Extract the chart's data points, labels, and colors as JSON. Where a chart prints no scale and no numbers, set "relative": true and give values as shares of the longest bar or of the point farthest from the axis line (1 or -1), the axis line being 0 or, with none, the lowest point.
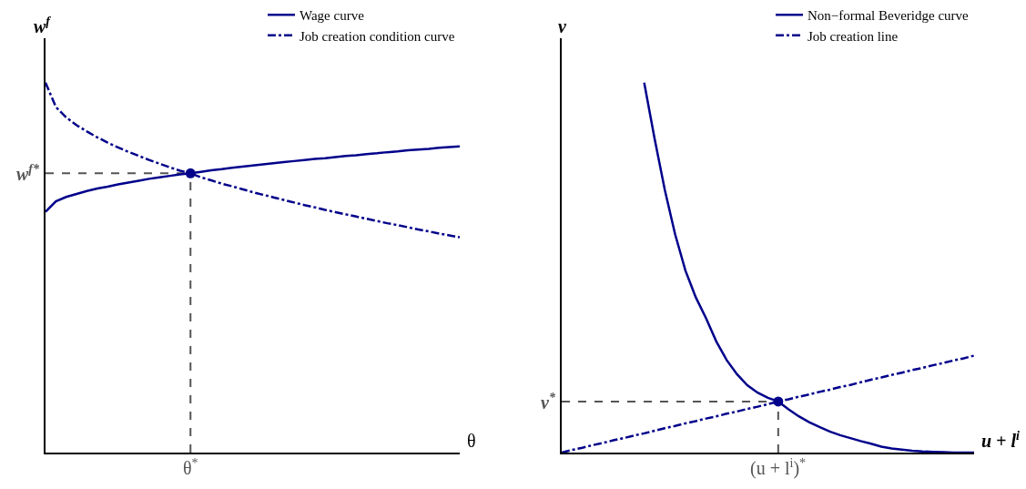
{
  "chart_data": [
    {
      "type": "line",
      "relative": true,
      "xlabel": "θ",
      "ylabel": "w$^{f}$",
      "legend": "top right",
      "annotations": [
        "θ$^{*}$",
        "w$^{f*}$"
      ],
      "categories": [
        null,
        null,
        null,
        null,
        null,
        null,
        null,
        null,
        null,
        null,
        null,
        null,
        null,
        null,
        null,
        null,
        null,
        null,
        null,
        null,
        null,
        null,
        null,
        null,
        null,
        null,
        null,
        null,
        null,
        null,
        null,
        null,
        null,
        null,
        null,
        null,
        null,
        null,
        null,
        null,
        null
      ],
      "series": [
        {
          "name": "Wage curve",
          "color": "#00008b",
          "line_style": "solid",
          "values": [
            0.651,
            0.679,
            0.691,
            0.699,
            0.707,
            0.714,
            0.719,
            0.725,
            0.73,
            0.735,
            0.74,
            0.744,
            0.748,
            0.752,
            0.755,
            0.759,
            0.763,
            0.766,
            0.77,
            0.773,
            0.776,
            0.779,
            0.782,
            0.785,
            0.788,
            0.791,
            0.794,
            0.796,
            0.799,
            0.802,
            0.804,
            0.807,
            0.809,
            0.812,
            0.814,
            0.817,
            0.819,
            0.821,
            0.824,
            0.826,
            0.828
          ]
        },
        {
          "name": "Job creation condition curve",
          "color": "#00008b",
          "line_style": "dashed",
          "values": [
            1,
            0.934,
            0.906,
            0.885,
            0.868,
            0.852,
            0.838,
            0.825,
            0.813,
            0.802,
            0.791,
            0.781,
            0.771,
            0.762,
            0.755,
            0.744,
            0.736,
            0.727,
            0.72,
            0.712,
            0.704,
            0.697,
            0.69,
            0.683,
            0.676,
            0.669,
            0.663,
            0.656,
            0.65,
            0.644,
            0.638,
            0.632,
            0.626,
            0.62,
            0.615,
            0.609,
            0.603,
            0.598,
            0.592,
            0.587,
            0.582
          ]
        }
      ]
    },
    {
      "type": "line",
      "relative": true,
      "xlabel": "u + l$^{i}$",
      "ylabel": "v",
      "legend": "top right",
      "annotations": [
        "(u + l$^{i}$)$^{*}$",
        "v$^{*}$"
      ],
      "categories": [
        null,
        null,
        null,
        null,
        null,
        null,
        null,
        null,
        null,
        null,
        null,
        null,
        null,
        null,
        null,
        null,
        null,
        null,
        null,
        null,
        null,
        null,
        null,
        null,
        null,
        null,
        null,
        null,
        null,
        null,
        null,
        null,
        null,
        null,
        null,
        null,
        null,
        null,
        null,
        null,
        null
      ],
      "series": [
        {
          "name": "Non−formal Beveridge curve",
          "color": "#00008b",
          "line_style": "solid",
          "values": [
            null,
            null,
            null,
            null,
            null,
            null,
            null,
            null,
            1,
            0.85,
            0.71,
            0.59,
            0.492,
            0.42,
            0.363,
            0.3,
            0.25,
            0.212,
            0.182,
            0.162,
            0.148,
            0.138,
            0.117,
            0.098,
            0.082,
            0.069,
            0.057,
            0.047,
            0.039,
            0.031,
            0.024,
            0.016,
            0.011,
            0.008,
            0.005,
            0.003,
            0.002,
            0.001,
            0,
            0,
            0
          ]
        },
        {
          "name": "Job creation line",
          "color": "#00008b",
          "line_style": "dashed",
          "values": [
            0,
            0.007,
            0.013,
            0.02,
            0.026,
            0.033,
            0.039,
            0.046,
            0.052,
            0.059,
            0.066,
            0.072,
            0.079,
            0.085,
            0.092,
            0.098,
            0.105,
            0.111,
            0.118,
            0.124,
            0.131,
            0.138,
            0.144,
            0.151,
            0.157,
            0.164,
            0.17,
            0.177,
            0.183,
            0.19,
            0.197,
            0.203,
            0.21,
            0.216,
            0.223,
            0.229,
            0.236,
            0.242,
            0.249,
            0.255,
            0.262
          ]
        }
      ]
    }
  ]
}
